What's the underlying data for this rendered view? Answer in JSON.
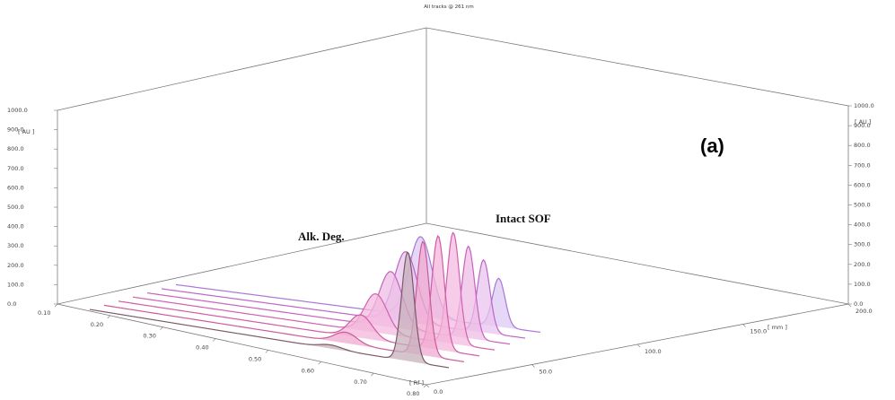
{
  "chart_data": {
    "type": "line",
    "title": "All tracks @ 261 nm",
    "panel_label": "(a)",
    "x_axis": {
      "label": "[ Rf ]",
      "range": [
        0.1,
        0.8
      ],
      "ticks": [
        "0.10",
        "0.20",
        "0.30",
        "0.40",
        "0.50",
        "0.60",
        "0.70",
        "0.80"
      ]
    },
    "y_axis_left": {
      "label": "[ AU ]",
      "range": [
        0,
        1000
      ],
      "ticks": [
        "0.0",
        "100.0",
        "200.0",
        "300.0",
        "400.0",
        "500.0",
        "600.0",
        "700.0",
        "800.0",
        "900.0",
        "1000.0"
      ]
    },
    "y_axis_right": {
      "label": "[ AU ]",
      "range": [
        0,
        1000
      ],
      "ticks": [
        "0.0",
        "100.0",
        "200.0",
        "300.0",
        "400.0",
        "500.0",
        "600.0",
        "700.0",
        "800.0",
        "900.0",
        "1000.0"
      ]
    },
    "depth_axis": {
      "label": "[ mm ]",
      "range": [
        0,
        200
      ],
      "ticks": [
        "0.0",
        "50.0",
        "100.0",
        "150.0",
        "200.0"
      ]
    },
    "annotations": [
      {
        "text": "Alk. Deg."
      },
      {
        "text": "Intact SOF"
      }
    ],
    "series": [
      {
        "color": "#7a5a6a",
        "fill": "#c8b0bc",
        "deg_peak": {
          "rf": 0.57,
          "height": 15
        },
        "sof_peak": {
          "rf": 0.72,
          "height": 450
        }
      },
      {
        "color": "#cc5a9a",
        "fill": "#f0aad0",
        "deg_peak": {
          "rf": 0.57,
          "height": 45
        },
        "sof_peak": {
          "rf": 0.72,
          "height": 470
        }
      },
      {
        "color": "#d25aa6",
        "fill": "#f3b5da",
        "deg_peak": {
          "rf": 0.57,
          "height": 95
        },
        "sof_peak": {
          "rf": 0.72,
          "height": 470
        }
      },
      {
        "color": "#d260b0",
        "fill": "#f3bbe0",
        "deg_peak": {
          "rf": 0.57,
          "height": 160
        },
        "sof_peak": {
          "rf": 0.72,
          "height": 460
        }
      },
      {
        "color": "#c862bc",
        "fill": "#eebde6",
        "deg_peak": {
          "rf": 0.57,
          "height": 230
        },
        "sof_peak": {
          "rf": 0.72,
          "height": 380
        }
      },
      {
        "color": "#bd66c6",
        "fill": "#eac4ee",
        "deg_peak": {
          "rf": 0.57,
          "height": 290
        },
        "sof_peak": {
          "rf": 0.72,
          "height": 300
        }
      },
      {
        "color": "#a878d6",
        "fill": "#dccaf2",
        "deg_peak": {
          "rf": 0.57,
          "height": 330
        },
        "sof_peak": {
          "rf": 0.72,
          "height": 200
        }
      }
    ]
  }
}
